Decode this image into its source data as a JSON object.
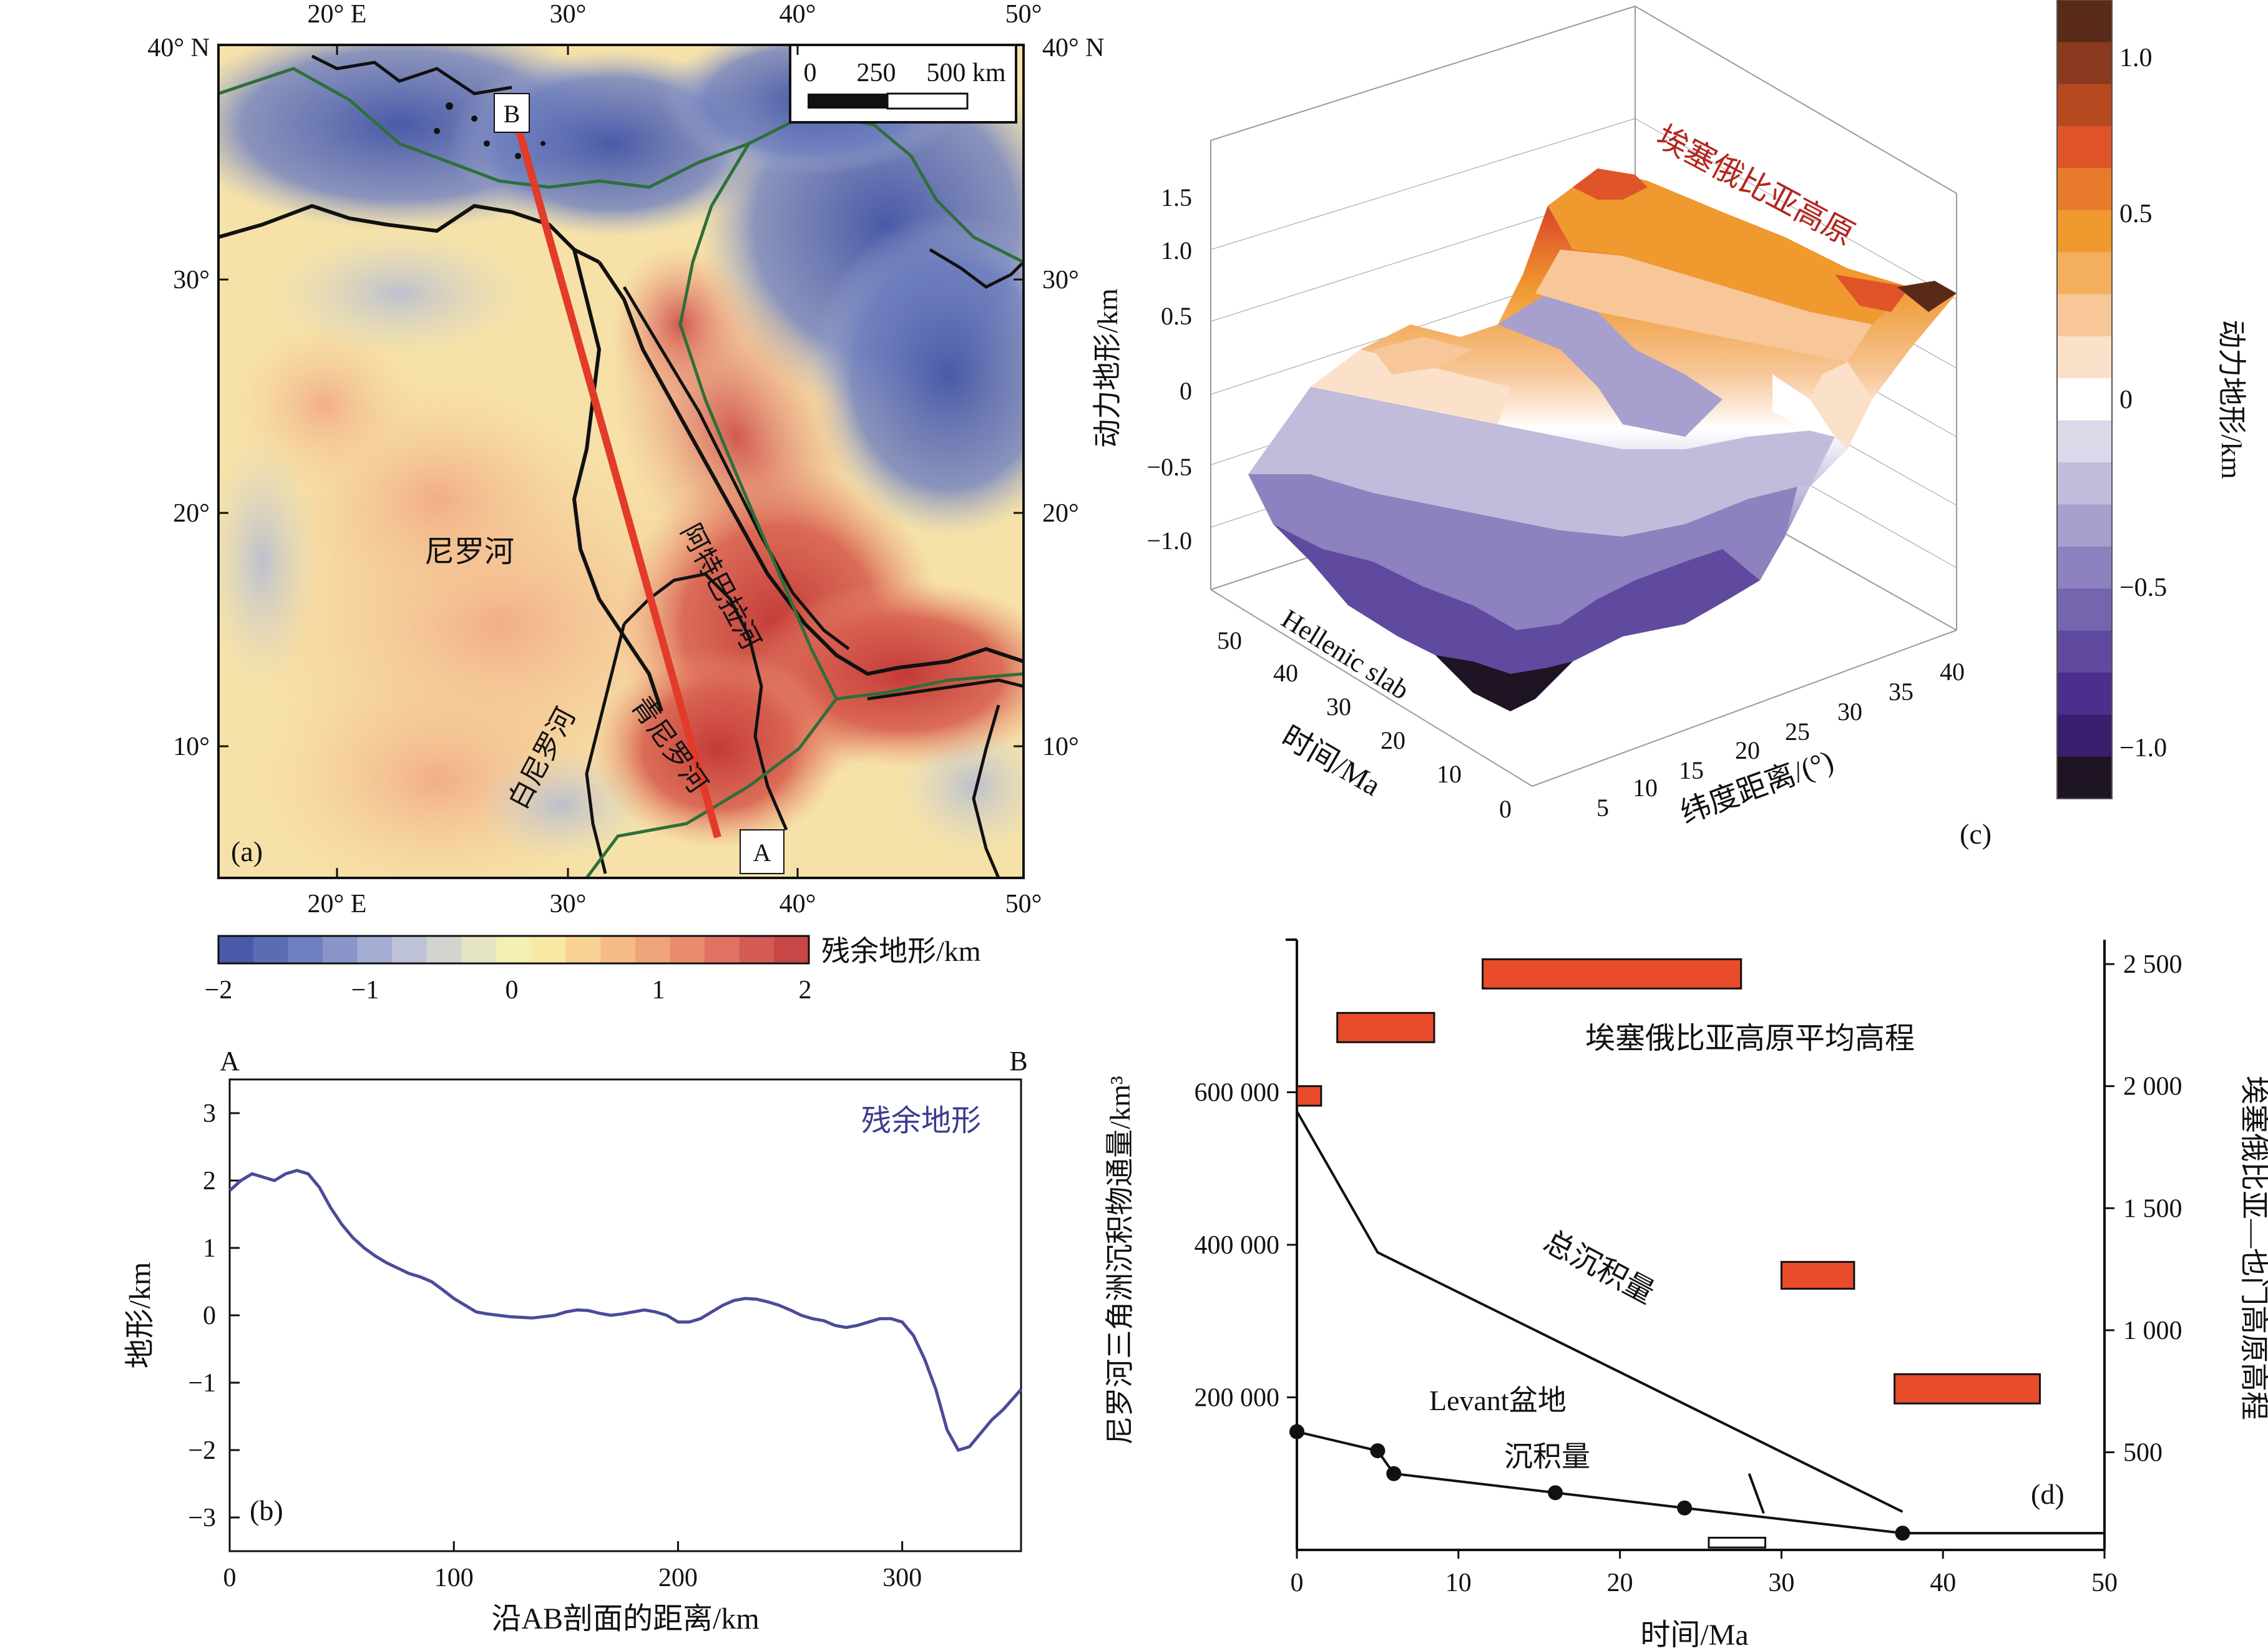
{
  "panel_a": {
    "label": "(a)",
    "lat_ticks": [
      "40° N",
      "30°",
      "20°",
      "10°"
    ],
    "lon_ticks": [
      "20° E",
      "30°",
      "40°",
      "50°"
    ],
    "scale_labels": [
      "0",
      "250",
      "500 km"
    ],
    "point_a": "A",
    "point_b": "B",
    "river_labels": {
      "nile": "尼罗河",
      "atbara": "阿特巴拉河",
      "white_nile": "白尼罗河",
      "blue_nile": "青尼罗河"
    },
    "colorbar": {
      "title": "残余地形/km",
      "ticks": [
        "−2",
        "−1",
        "0",
        "1",
        "2"
      ],
      "colors": [
        "#4a5aa8",
        "#5a6cb4",
        "#6f80c0",
        "#8995c8",
        "#a4add2",
        "#bec2d6",
        "#d2d4d0",
        "#e4e3c4",
        "#f4efb4",
        "#f9e7a4",
        "#f8d294",
        "#f5bb86",
        "#efa37a",
        "#e88b6e",
        "#df7262",
        "#d45a54",
        "#c84646"
      ]
    }
  },
  "panel_b": {
    "label": "(b)",
    "end_a": "A",
    "end_b": "B",
    "line_color": "#4b4b9a"
  },
  "panel_c": {
    "label": "(c)",
    "z_ticks": [
      "1.5",
      "1.0",
      "0.5",
      "0",
      "−0.5",
      "−1.0"
    ],
    "z_title": "动力地形/km",
    "time_ticks": [
      "50",
      "40",
      "30",
      "20",
      "10",
      "0"
    ],
    "time_title": "时间/Ma",
    "lat_ticks": [
      "5",
      "10",
      "15",
      "20",
      "25",
      "30",
      "35",
      "40"
    ],
    "lat_title": "纬度距离/(°)",
    "annotation_plateau": "埃塞俄比亚高原",
    "annotation_slab": "Hellenic slab",
    "colorbar": {
      "title": "动力地形/km",
      "ticks": [
        "1.0",
        "0.5",
        "0",
        "−0.5",
        "−1.0"
      ],
      "colors": [
        "#5a2a18",
        "#8a3a1e",
        "#b6491f",
        "#e0542a",
        "#e87a2c",
        "#f0992f",
        "#f3ae5e",
        "#f7c79a",
        "#fbe1c9",
        "#ffffff",
        "#dcd8ea",
        "#c2bcdc",
        "#a79fce",
        "#8d81bf",
        "#7465ae",
        "#5f4aa0",
        "#4c2f8c",
        "#3b1e6e",
        "#1f1424"
      ]
    }
  },
  "panel_d": {
    "label": "(d)",
    "annotation_plateau": "埃塞俄比亚高原平均高程",
    "annotation_total": "总沉积量",
    "annotation_levant_1": "Levant盆地",
    "annotation_levant_2": "沉积量",
    "xlabel": "时间/Ma",
    "ylabel_left": "尼罗河三角洲沉积物通量/km³",
    "ylabel_right": "埃塞俄比亚—也门高原高程",
    "left_ticks": [
      "600 000",
      "400 000",
      "200 000"
    ],
    "right_ticks": [
      "2 500",
      "2 000",
      "1 500",
      "1 000",
      "500"
    ],
    "x_ticks": [
      "0",
      "10",
      "20",
      "30",
      "40",
      "50"
    ],
    "bar_color": "#e84c2a"
  },
  "chart_data": [
    {
      "type": "line",
      "panel": "b",
      "title": "",
      "xlabel": "沿AB剖面的距离/km",
      "ylabel": "地形/km",
      "xlim": [
        0,
        353
      ],
      "ylim": [
        -3.5,
        3.5
      ],
      "x_ticks": [
        0,
        100,
        200,
        300
      ],
      "y_ticks": [
        -3,
        -2,
        -1,
        0,
        1,
        2,
        3
      ],
      "series": [
        {
          "name": "残余地形",
          "x": [
            0,
            5,
            10,
            15,
            20,
            25,
            30,
            35,
            40,
            45,
            50,
            55,
            60,
            65,
            70,
            75,
            80,
            85,
            90,
            95,
            100,
            105,
            110,
            115,
            120,
            125,
            130,
            135,
            140,
            145,
            150,
            155,
            160,
            165,
            170,
            175,
            180,
            185,
            190,
            195,
            200,
            205,
            210,
            215,
            220,
            225,
            230,
            235,
            240,
            245,
            250,
            255,
            260,
            265,
            270,
            275,
            280,
            285,
            290,
            295,
            300,
            305,
            310,
            315,
            320,
            325,
            330,
            335,
            340,
            345,
            353
          ],
          "y": [
            1.85,
            2.0,
            2.1,
            2.05,
            2.0,
            2.1,
            2.15,
            2.1,
            1.9,
            1.6,
            1.35,
            1.15,
            1.0,
            0.88,
            0.78,
            0.7,
            0.62,
            0.57,
            0.5,
            0.38,
            0.25,
            0.15,
            0.05,
            0.02,
            0.0,
            -0.02,
            -0.03,
            -0.04,
            -0.02,
            0.0,
            0.05,
            0.08,
            0.07,
            0.03,
            0.0,
            0.02,
            0.05,
            0.08,
            0.05,
            0.0,
            -0.1,
            -0.1,
            -0.05,
            0.05,
            0.15,
            0.22,
            0.25,
            0.24,
            0.2,
            0.15,
            0.08,
            0.0,
            -0.05,
            -0.08,
            -0.15,
            -0.18,
            -0.15,
            -0.1,
            -0.05,
            -0.05,
            -0.1,
            -0.3,
            -0.65,
            -1.1,
            -1.7,
            -2.0,
            -1.95,
            -1.75,
            -1.55,
            -1.4,
            -1.1
          ]
        }
      ]
    },
    {
      "type": "line",
      "panel": "d",
      "title": "",
      "xlabel": "时间/Ma",
      "ylabel": "尼罗河三角洲沉积物通量/km³",
      "xlim": [
        0,
        50
      ],
      "ylim": [
        0,
        800000
      ],
      "y2label": "埃塞俄比亚—也门高原高程",
      "y2lim": [
        100,
        2600
      ],
      "series": [
        {
          "name": "总沉积量",
          "x": [
            0,
            5,
            37.5
          ],
          "y": [
            575000,
            390000,
            50000
          ]
        },
        {
          "name": "Levant盆地沉积量",
          "x": [
            0,
            5,
            6,
            16,
            24,
            37.5,
            50
          ],
          "y": [
            155000,
            130000,
            100000,
            75000,
            55000,
            22000,
            22000
          ]
        }
      ],
      "plateau_elevation_boxes": [
        {
          "t_start": 11.5,
          "t_end": 27.5,
          "elev_low": 2400,
          "elev_high": 2520
        },
        {
          "t_start": 2.5,
          "t_end": 8.5,
          "elev_low": 2180,
          "elev_high": 2300
        },
        {
          "t_start": 0,
          "t_end": 1.5,
          "elev_low": 1920,
          "elev_high": 2000
        },
        {
          "t_start": 30,
          "t_end": 34.5,
          "elev_low": 1170,
          "elev_high": 1280
        },
        {
          "t_start": 37,
          "t_end": 46,
          "elev_low": 700,
          "elev_high": 820
        }
      ],
      "open_box": {
        "t_start": 25.5,
        "t_end": 29,
        "elev_low": 110,
        "elev_high": 150
      }
    }
  ]
}
